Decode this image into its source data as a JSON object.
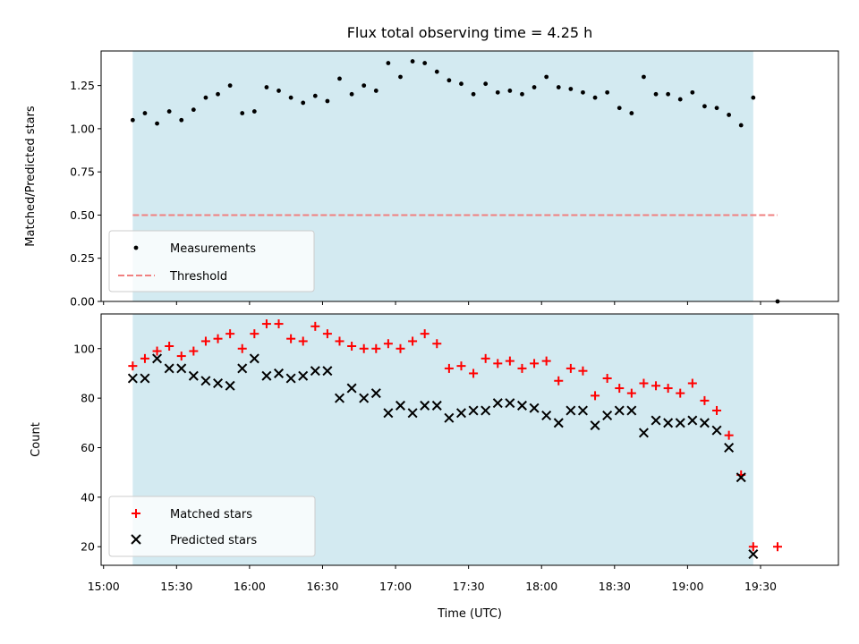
{
  "chart_data": [
    {
      "type": "scatter",
      "title": "Flux total observing time = 4.25 h",
      "xlabel": "",
      "ylabel": "Matched/Predicted stars",
      "ylim": [
        0,
        1.45
      ],
      "yticks": [
        "0.00",
        "0.25",
        "0.50",
        "0.75",
        "1.00",
        "1.25"
      ],
      "shaded_span": [
        "15:12",
        "19:27"
      ],
      "shaded_color": "#d3eaf1",
      "legend_position": "lower-left",
      "series": [
        {
          "name": "Measurements",
          "marker": "dot",
          "color": "#000000",
          "x": [
            "15:12",
            "15:17",
            "15:22",
            "15:27",
            "15:32",
            "15:37",
            "15:42",
            "15:47",
            "15:52",
            "15:57",
            "16:02",
            "16:07",
            "16:12",
            "16:17",
            "16:22",
            "16:27",
            "16:32",
            "16:37",
            "16:42",
            "16:47",
            "16:52",
            "16:57",
            "17:02",
            "17:07",
            "17:12",
            "17:17",
            "17:22",
            "17:27",
            "17:32",
            "17:37",
            "17:42",
            "17:47",
            "17:52",
            "17:57",
            "18:02",
            "18:07",
            "18:12",
            "18:17",
            "18:22",
            "18:27",
            "18:32",
            "18:37",
            "18:42",
            "18:47",
            "18:52",
            "18:57",
            "19:02",
            "19:07",
            "19:12",
            "19:17",
            "19:22",
            "19:27",
            "19:37"
          ],
          "y": [
            1.05,
            1.09,
            1.03,
            1.1,
            1.05,
            1.11,
            1.18,
            1.2,
            1.25,
            1.09,
            1.1,
            1.24,
            1.22,
            1.18,
            1.15,
            1.19,
            1.16,
            1.29,
            1.2,
            1.25,
            1.22,
            1.38,
            1.3,
            1.39,
            1.38,
            1.33,
            1.28,
            1.26,
            1.2,
            1.26,
            1.21,
            1.22,
            1.2,
            1.24,
            1.3,
            1.24,
            1.23,
            1.21,
            1.18,
            1.21,
            1.12,
            1.09,
            1.3,
            1.2,
            1.2,
            1.17,
            1.21,
            1.13,
            1.12,
            1.08,
            1.02,
            1.18,
            0.0
          ]
        },
        {
          "name": "Threshold",
          "style": "dashed",
          "color": "#f08080",
          "x": [
            "15:12",
            "19:37"
          ],
          "y": [
            0.5,
            0.5
          ]
        }
      ]
    },
    {
      "type": "scatter",
      "title": "",
      "xlabel": "Time (UTC)",
      "ylabel": "Count",
      "ylim": [
        12.5,
        114
      ],
      "yticks": [
        "20",
        "40",
        "60",
        "80",
        "100"
      ],
      "xlim": [
        "14:59",
        "20:02"
      ],
      "xticks": [
        "15:00",
        "15:30",
        "16:00",
        "16:30",
        "17:00",
        "17:30",
        "18:00",
        "18:30",
        "19:00",
        "19:30"
      ],
      "shaded_span": [
        "15:12",
        "19:27"
      ],
      "shaded_color": "#d3eaf1",
      "legend_position": "lower-left",
      "series": [
        {
          "name": "Matched stars",
          "marker": "plus",
          "color": "#ff0000",
          "x": [
            "15:12",
            "15:17",
            "15:22",
            "15:27",
            "15:32",
            "15:37",
            "15:42",
            "15:47",
            "15:52",
            "15:57",
            "16:02",
            "16:07",
            "16:12",
            "16:17",
            "16:22",
            "16:27",
            "16:32",
            "16:37",
            "16:42",
            "16:47",
            "16:52",
            "16:57",
            "17:02",
            "17:07",
            "17:12",
            "17:17",
            "17:22",
            "17:27",
            "17:32",
            "17:37",
            "17:42",
            "17:47",
            "17:52",
            "17:57",
            "18:02",
            "18:07",
            "18:12",
            "18:17",
            "18:22",
            "18:27",
            "18:32",
            "18:37",
            "18:42",
            "18:47",
            "18:52",
            "18:57",
            "19:02",
            "19:07",
            "19:12",
            "19:17",
            "19:22",
            "19:27",
            "19:37"
          ],
          "y": [
            93,
            96,
            99,
            101,
            97,
            99,
            103,
            104,
            106,
            100,
            106,
            110,
            110,
            104,
            103,
            109,
            106,
            103,
            101,
            100,
            100,
            102,
            100,
            103,
            106,
            102,
            92,
            93,
            90,
            96,
            94,
            95,
            92,
            94,
            95,
            87,
            92,
            91,
            81,
            88,
            84,
            82,
            86,
            85,
            84,
            82,
            86,
            79,
            75,
            65,
            49,
            20,
            20
          ]
        },
        {
          "name": "Predicted stars",
          "marker": "x",
          "color": "#000000",
          "x": [
            "15:12",
            "15:17",
            "15:22",
            "15:27",
            "15:32",
            "15:37",
            "15:42",
            "15:47",
            "15:52",
            "15:57",
            "16:02",
            "16:07",
            "16:12",
            "16:17",
            "16:22",
            "16:27",
            "16:32",
            "16:37",
            "16:42",
            "16:47",
            "16:52",
            "16:57",
            "17:02",
            "17:07",
            "17:12",
            "17:17",
            "17:22",
            "17:27",
            "17:32",
            "17:37",
            "17:42",
            "17:47",
            "17:52",
            "17:57",
            "18:02",
            "18:07",
            "18:12",
            "18:17",
            "18:22",
            "18:27",
            "18:32",
            "18:37",
            "18:42",
            "18:47",
            "18:52",
            "18:57",
            "19:02",
            "19:07",
            "19:12",
            "19:17",
            "19:22",
            "19:27"
          ],
          "y": [
            88,
            88,
            96,
            92,
            92,
            89,
            87,
            86,
            85,
            92,
            96,
            89,
            90,
            88,
            89,
            91,
            91,
            80,
            84,
            80,
            82,
            74,
            77,
            74,
            77,
            77,
            72,
            74,
            75,
            75,
            78,
            78,
            77,
            76,
            73,
            70,
            75,
            75,
            69,
            73,
            75,
            75,
            66,
            71,
            70,
            70,
            71,
            70,
            67,
            60,
            48,
            17
          ]
        }
      ]
    }
  ]
}
